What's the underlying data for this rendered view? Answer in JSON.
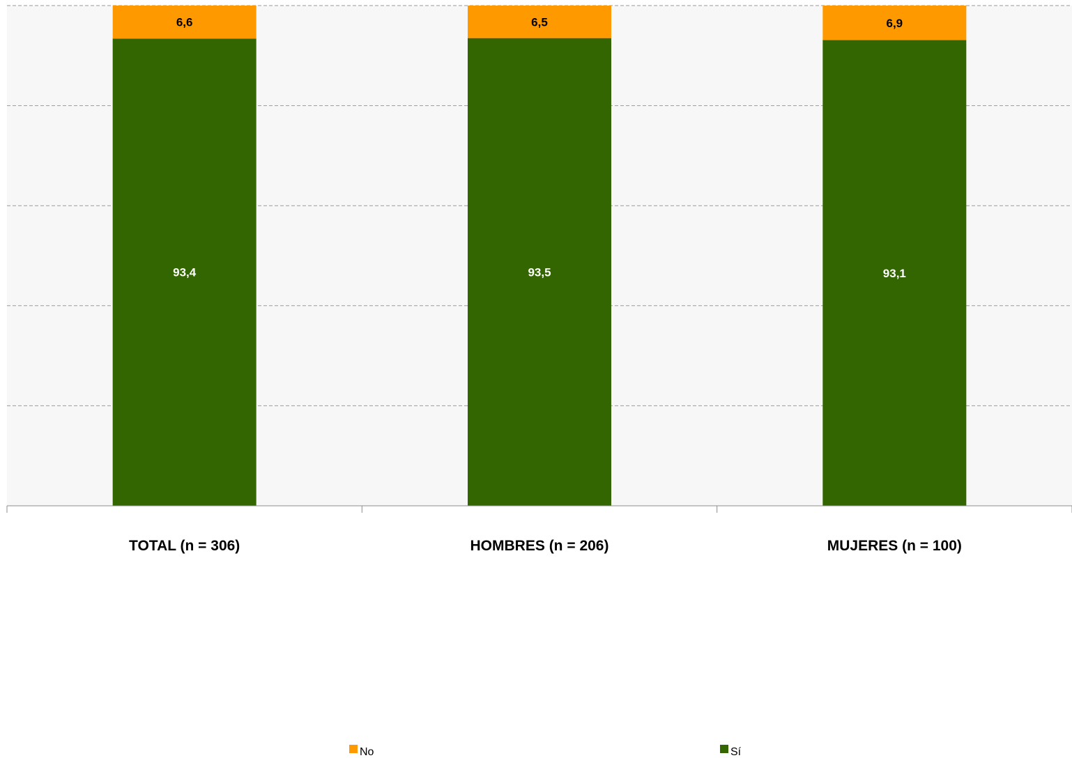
{
  "chart_data": {
    "type": "bar",
    "stacked": true,
    "categories": [
      "TOTAL (n = 306)",
      "HOMBRES (n = 206)",
      "MUJERES (n = 100)"
    ],
    "series": [
      {
        "name": "Sí",
        "color": "#336600",
        "label_color": "#ffffff",
        "values": [
          93.4,
          93.5,
          93.1
        ],
        "labels": [
          "93,4",
          "93,5",
          "93,1"
        ]
      },
      {
        "name": "No",
        "color": "#FF9900",
        "label_color": "#000000",
        "values": [
          6.6,
          6.5,
          6.9
        ],
        "labels": [
          "6,6",
          "6,5",
          "6,9"
        ]
      }
    ],
    "ylim": [
      0,
      100
    ],
    "grid": true,
    "grid_style": "dashed",
    "plot_background": "#F7F7F7",
    "legend": {
      "position": "bottom",
      "order": [
        "No",
        "Sí"
      ]
    }
  }
}
